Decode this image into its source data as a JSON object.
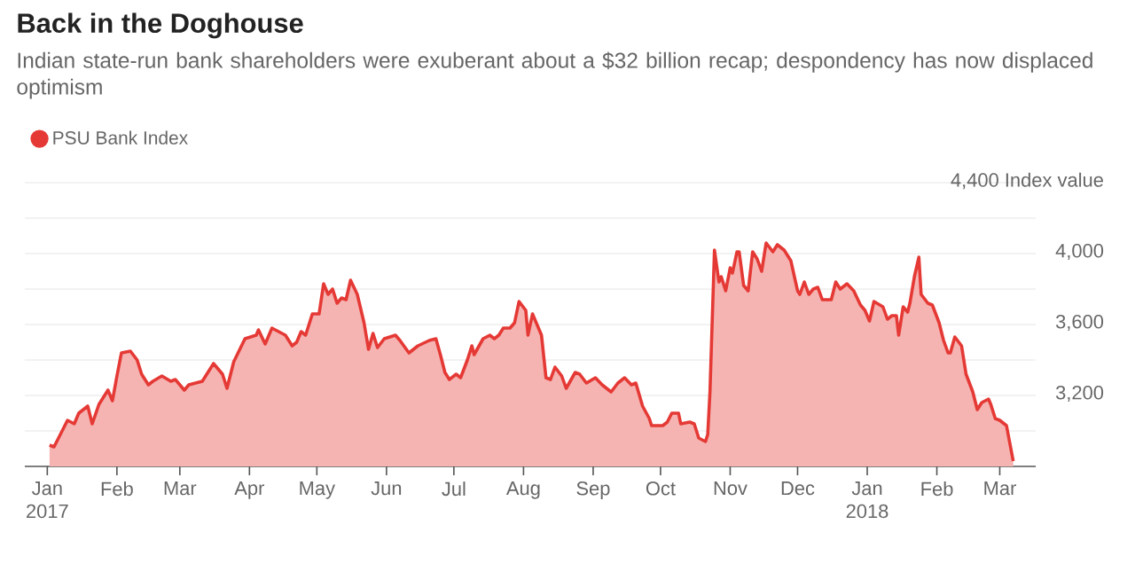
{
  "chart_data": {
    "type": "area",
    "title": "Back in the Doghouse",
    "subtitle": "Indian state-run bank shareholders were exuberant about a $32 billion recap; despondency has now displaced optimism",
    "x": [
      "2017-01-02",
      "2017-01-04",
      "2017-01-10",
      "2017-01-13",
      "2017-01-15",
      "2017-01-19",
      "2017-01-21",
      "2017-01-24",
      "2017-01-28",
      "2017-01-30",
      "2017-02-01",
      "2017-02-03",
      "2017-02-07",
      "2017-02-10",
      "2017-02-12",
      "2017-02-15",
      "2017-02-17",
      "2017-02-21",
      "2017-02-25",
      "2017-02-27",
      "2017-03-03",
      "2017-03-05",
      "2017-03-11",
      "2017-03-16",
      "2017-03-20",
      "2017-03-22",
      "2017-03-25",
      "2017-03-30",
      "2017-04-04",
      "2017-04-05",
      "2017-04-08",
      "2017-04-11",
      "2017-04-17",
      "2017-04-20",
      "2017-04-22",
      "2017-04-24",
      "2017-04-26",
      "2017-04-29",
      "2017-05-02",
      "2017-05-04",
      "2017-05-06",
      "2017-05-08",
      "2017-05-10",
      "2017-05-12",
      "2017-05-14",
      "2017-05-16",
      "2017-05-19",
      "2017-05-22",
      "2017-05-24",
      "2017-05-26",
      "2017-05-28",
      "2017-05-31",
      "2017-06-05",
      "2017-06-07",
      "2017-06-11",
      "2017-06-15",
      "2017-06-20",
      "2017-06-23",
      "2017-06-25",
      "2017-06-27",
      "2017-06-29",
      "2017-07-02",
      "2017-07-04",
      "2017-07-07",
      "2017-07-09",
      "2017-07-10",
      "2017-07-14",
      "2017-07-17",
      "2017-07-19",
      "2017-07-21",
      "2017-07-23",
      "2017-07-26",
      "2017-07-28",
      "2017-07-30",
      "2017-08-02",
      "2017-08-03",
      "2017-08-05",
      "2017-08-09",
      "2017-08-11",
      "2017-08-13",
      "2017-08-15",
      "2017-08-18",
      "2017-08-20",
      "2017-08-24",
      "2017-08-26",
      "2017-08-29",
      "2017-09-02",
      "2017-09-05",
      "2017-09-09",
      "2017-09-12",
      "2017-09-15",
      "2017-09-18",
      "2017-09-20",
      "2017-09-23",
      "2017-09-26",
      "2017-09-27",
      "2017-10-02",
      "2017-10-04",
      "2017-10-06",
      "2017-10-09",
      "2017-10-10",
      "2017-10-14",
      "2017-10-16",
      "2017-10-18",
      "2017-10-21",
      "2017-10-22",
      "2017-10-23",
      "2017-10-25",
      "2017-10-27",
      "2017-10-28",
      "2017-10-30",
      "2017-11-01",
      "2017-11-02",
      "2017-11-04",
      "2017-11-05",
      "2017-11-07",
      "2017-11-09",
      "2017-11-11",
      "2017-11-13",
      "2017-11-15",
      "2017-11-17",
      "2017-11-20",
      "2017-11-22",
      "2017-11-25",
      "2017-11-28",
      "2017-12-01",
      "2017-12-02",
      "2017-12-04",
      "2017-12-06",
      "2017-12-08",
      "2017-12-10",
      "2017-12-12",
      "2017-12-16",
      "2017-12-18",
      "2017-12-20",
      "2017-12-23",
      "2017-12-26",
      "2017-12-29",
      "2017-12-31",
      "2018-01-02",
      "2018-01-04",
      "2018-01-08",
      "2018-01-10",
      "2018-01-12",
      "2018-01-14",
      "2018-01-15",
      "2018-01-17",
      "2018-01-19",
      "2018-01-20",
      "2018-01-22",
      "2018-01-24",
      "2018-01-25",
      "2018-01-28",
      "2018-01-30",
      "2018-02-02",
      "2018-02-04",
      "2018-02-06",
      "2018-02-07",
      "2018-02-09",
      "2018-02-12",
      "2018-02-14",
      "2018-02-17",
      "2018-02-19",
      "2018-02-21",
      "2018-02-24",
      "2018-02-25",
      "2018-02-27",
      "2018-03-01",
      "2018-03-04",
      "2018-03-07"
    ],
    "series": [
      {
        "name": "PSU Bank Index",
        "color": "#e53935",
        "values": [
          2920,
          2910,
          3060,
          3040,
          3100,
          3140,
          3040,
          3150,
          3230,
          3170,
          3310,
          3440,
          3450,
          3400,
          3320,
          3260,
          3280,
          3310,
          3280,
          3290,
          3230,
          3260,
          3280,
          3380,
          3320,
          3240,
          3390,
          3520,
          3540,
          3570,
          3490,
          3580,
          3540,
          3480,
          3500,
          3560,
          3540,
          3660,
          3660,
          3830,
          3770,
          3800,
          3720,
          3750,
          3740,
          3850,
          3770,
          3610,
          3460,
          3550,
          3470,
          3520,
          3540,
          3510,
          3440,
          3480,
          3510,
          3520,
          3430,
          3330,
          3290,
          3320,
          3300,
          3400,
          3480,
          3430,
          3520,
          3540,
          3520,
          3540,
          3580,
          3580,
          3610,
          3730,
          3680,
          3540,
          3660,
          3540,
          3300,
          3290,
          3360,
          3310,
          3240,
          3330,
          3320,
          3270,
          3300,
          3260,
          3220,
          3270,
          3300,
          3260,
          3270,
          3140,
          3070,
          3030,
          3030,
          3050,
          3100,
          3100,
          3040,
          3050,
          3040,
          2960,
          2940,
          2980,
          3220,
          4020,
          3840,
          3870,
          3790,
          3920,
          3890,
          4010,
          4010,
          3820,
          3790,
          4010,
          3970,
          3900,
          4060,
          4010,
          4050,
          4020,
          3960,
          3790,
          3770,
          3840,
          3770,
          3800,
          3810,
          3740,
          3740,
          3840,
          3800,
          3830,
          3790,
          3710,
          3680,
          3620,
          3730,
          3700,
          3630,
          3650,
          3650,
          3540,
          3700,
          3670,
          3720,
          3870,
          3980,
          3770,
          3720,
          3710,
          3610,
          3510,
          3440,
          3440,
          3530,
          3480,
          3320,
          3220,
          3120,
          3160,
          3180,
          3150,
          3070,
          3060,
          3030,
          2830
        ]
      }
    ],
    "xlim": [
      "2016-12-22",
      "2018-03-17"
    ],
    "xticks": [
      {
        "value": "2017-01-01",
        "label": "Jan 2017"
      },
      {
        "value": "2017-02-01",
        "label": "Feb"
      },
      {
        "value": "2017-03-01",
        "label": "Mar"
      },
      {
        "value": "2017-04-01",
        "label": "Apr"
      },
      {
        "value": "2017-05-01",
        "label": "May"
      },
      {
        "value": "2017-06-01",
        "label": "Jun"
      },
      {
        "value": "2017-07-01",
        "label": "Jul"
      },
      {
        "value": "2017-08-01",
        "label": "Aug"
      },
      {
        "value": "2017-09-01",
        "label": "Sep"
      },
      {
        "value": "2017-10-01",
        "label": "Oct"
      },
      {
        "value": "2017-11-01",
        "label": "Nov"
      },
      {
        "value": "2017-12-01",
        "label": "Dec"
      },
      {
        "value": "2018-01-01",
        "label": "Jan 2018"
      },
      {
        "value": "2018-02-01",
        "label": "Feb"
      },
      {
        "value": "2018-03-01",
        "label": "Mar"
      }
    ],
    "ylim": [
      2800,
      4400
    ],
    "yticks": [
      {
        "value": 3000,
        "label": null
      },
      {
        "value": 3200,
        "label": "3,200"
      },
      {
        "value": 3400,
        "label": null
      },
      {
        "value": 3600,
        "label": "3,600"
      },
      {
        "value": 3800,
        "label": null
      },
      {
        "value": 4000,
        "label": "4,000"
      },
      {
        "value": 4200,
        "label": null
      },
      {
        "value": 4400,
        "label": "4,400 Index value"
      }
    ],
    "grid": "y",
    "legend": "top left"
  }
}
